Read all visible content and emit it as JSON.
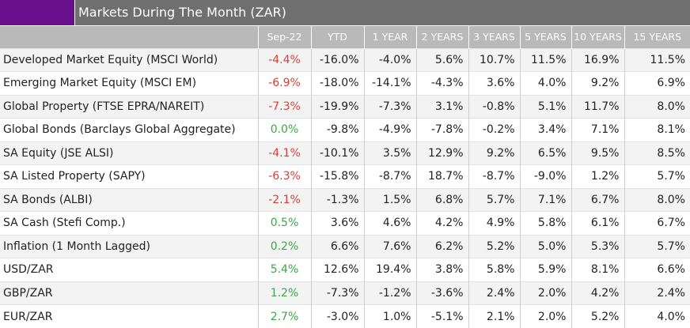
{
  "title": "Markets During The Month (ZAR)",
  "colors": {
    "brand_swatch": "#6a0f8e",
    "title_bar": "#6f6f6f",
    "header": "#b9b9b9",
    "negative": "#d6403a",
    "positive": "#3aa845"
  },
  "headers": [
    "",
    "Sep-22",
    "YTD",
    "1 YEAR",
    "2 YEARS",
    "3 YEARS",
    "5 YEARS",
    "10 YEARS",
    "15 YEARS"
  ],
  "rows": [
    {
      "name": "Developed Market Equity (MSCI World)",
      "month_sign": "neg",
      "values": [
        "-4.4%",
        "-16.0%",
        "-4.0%",
        "5.6%",
        "10.7%",
        "11.5%",
        "16.9%",
        "11.5%"
      ]
    },
    {
      "name": "Emerging Market Equity (MSCI EM)",
      "month_sign": "neg",
      "values": [
        "-6.9%",
        "-18.0%",
        "-14.1%",
        "-4.3%",
        "3.6%",
        "4.0%",
        "9.2%",
        "6.9%"
      ]
    },
    {
      "name": "Global Property (FTSE EPRA/NAREIT)",
      "month_sign": "neg",
      "values": [
        "-7.3%",
        "-19.9%",
        "-7.3%",
        "3.1%",
        "-0.8%",
        "5.1%",
        "11.7%",
        "8.0%"
      ]
    },
    {
      "name": "Global Bonds (Barclays Global Aggregate)",
      "month_sign": "pos",
      "values": [
        "0.0%",
        "-9.8%",
        "-4.9%",
        "-7.8%",
        "-0.2%",
        "3.4%",
        "7.1%",
        "8.1%"
      ]
    },
    {
      "name": "SA Equity (JSE ALSI)",
      "month_sign": "neg",
      "values": [
        "-4.1%",
        "-10.1%",
        "3.5%",
        "12.9%",
        "9.2%",
        "6.5%",
        "9.5%",
        "8.5%"
      ]
    },
    {
      "name": "SA Listed Property (SAPY)",
      "month_sign": "neg",
      "values": [
        "-6.3%",
        "-15.8%",
        "-8.7%",
        "18.7%",
        "-8.7%",
        "-9.0%",
        "1.2%",
        "5.7%"
      ]
    },
    {
      "name": "SA Bonds (ALBI)",
      "month_sign": "neg",
      "values": [
        "-2.1%",
        "-1.3%",
        "1.5%",
        "6.8%",
        "5.7%",
        "7.1%",
        "6.7%",
        "8.0%"
      ]
    },
    {
      "name": "SA Cash (Stefi Comp.)",
      "month_sign": "pos",
      "values": [
        "0.5%",
        "3.6%",
        "4.6%",
        "4.2%",
        "4.9%",
        "5.8%",
        "6.1%",
        "6.7%"
      ]
    },
    {
      "name": "Inflation (1 Month Lagged)",
      "month_sign": "pos",
      "values": [
        "0.2%",
        "6.6%",
        "7.6%",
        "6.2%",
        "5.2%",
        "5.0%",
        "5.3%",
        "5.7%"
      ]
    },
    {
      "name": "USD/ZAR",
      "month_sign": "pos",
      "values": [
        "5.4%",
        "12.6%",
        "19.4%",
        "3.8%",
        "5.8%",
        "5.9%",
        "8.1%",
        "6.6%"
      ]
    },
    {
      "name": "GBP/ZAR",
      "month_sign": "pos",
      "values": [
        "1.2%",
        "-7.3%",
        "-1.2%",
        "-3.6%",
        "2.4%",
        "2.0%",
        "4.2%",
        "2.4%"
      ]
    },
    {
      "name": "EUR/ZAR",
      "month_sign": "pos",
      "values": [
        "2.7%",
        "-3.0%",
        "1.0%",
        "-5.1%",
        "2.1%",
        "2.0%",
        "5.2%",
        "4.0%"
      ]
    }
  ]
}
